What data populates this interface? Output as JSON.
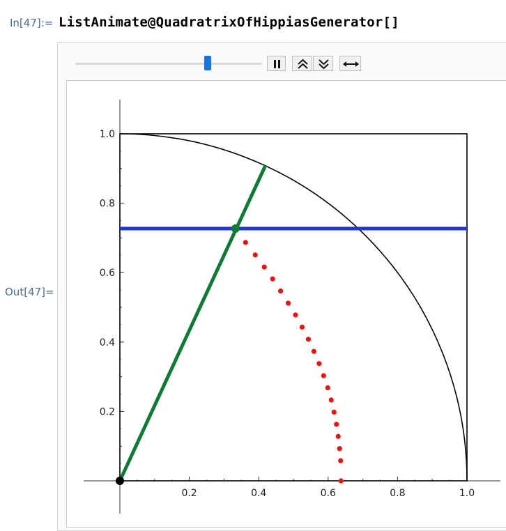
{
  "cell": {
    "in_label": "In[47]:=",
    "code": "ListAnimate@QuadratrixOfHippiasGenerator[]",
    "out_label": "Out[47]="
  },
  "controls": {
    "slider_value": 0.71,
    "pause_icon": "pause-icon",
    "faster_icon": "double-chevron-up-icon",
    "slower_icon": "double-chevron-down-icon",
    "direction_icon": "left-right-arrow-icon"
  },
  "chart_data": {
    "type": "scatter",
    "xlim": [
      0,
      1
    ],
    "ylim": [
      0,
      1
    ],
    "x_ticks": [
      "0.2",
      "0.4",
      "0.6",
      "0.8",
      "1.0"
    ],
    "y_ticks": [
      "0.2",
      "0.4",
      "0.6",
      "0.8",
      "1.0"
    ],
    "square": {
      "x": [
        0,
        1
      ],
      "y": [
        0,
        1
      ],
      "color": "#000000"
    },
    "arc": {
      "radius": 1,
      "color": "#000000"
    },
    "horizontal_line": {
      "y": 0.727,
      "color": "#1f35e0"
    },
    "rotating_line": {
      "from": [
        0,
        0
      ],
      "to": [
        0.42,
        0.91
      ],
      "color": "#0f7a35"
    },
    "intersection_point": {
      "x": 0.333,
      "y": 0.727,
      "color": "#0f7a35"
    },
    "origin_point": {
      "x": 0,
      "y": 0,
      "color": "#000000"
    },
    "quadratrix_points": {
      "color": "#ee1111",
      "x": [
        0.362,
        0.39,
        0.416,
        0.44,
        0.463,
        0.485,
        0.506,
        0.525,
        0.543,
        0.559,
        0.574,
        0.587,
        0.599,
        0.609,
        0.617,
        0.624,
        0.629,
        0.633,
        0.636,
        0.637
      ],
      "y": [
        0.687,
        0.651,
        0.616,
        0.582,
        0.547,
        0.512,
        0.478,
        0.443,
        0.408,
        0.373,
        0.338,
        0.303,
        0.268,
        0.233,
        0.198,
        0.163,
        0.128,
        0.093,
        0.058,
        0.0
      ]
    }
  }
}
